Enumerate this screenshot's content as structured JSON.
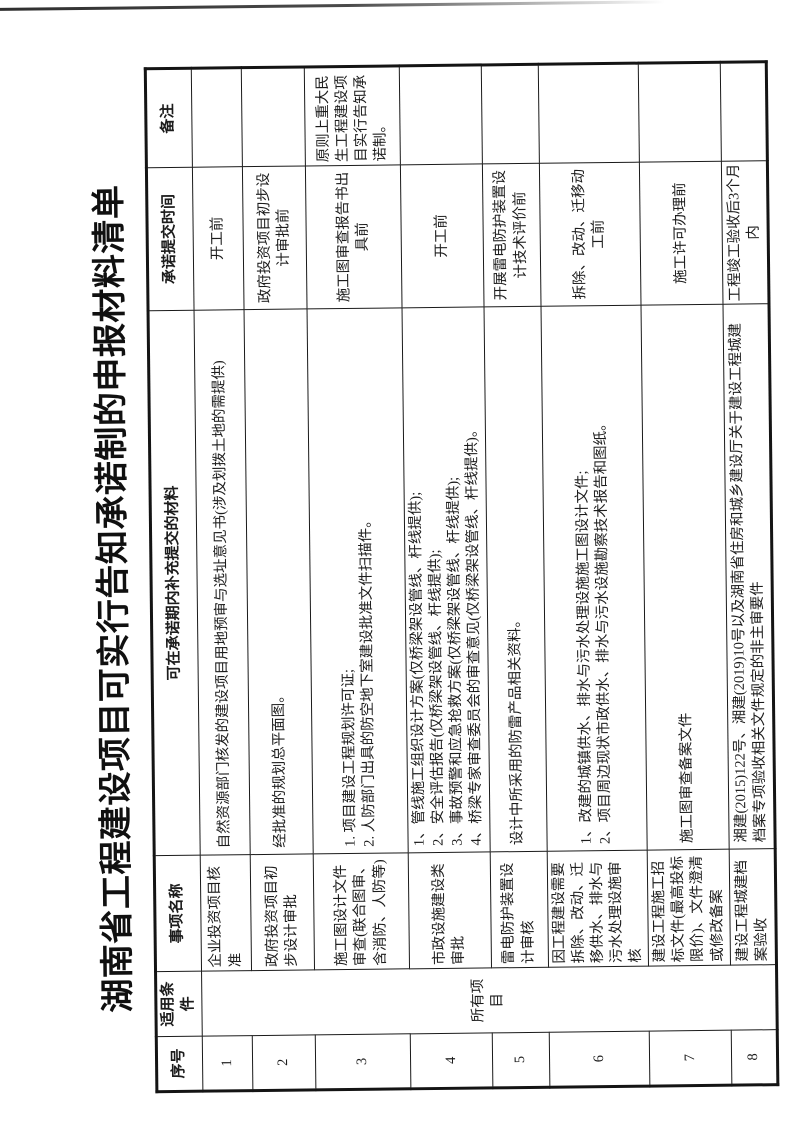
{
  "colors": {
    "ink": "#1c1c1c",
    "border": "#1a1a1a",
    "title_ink": "#101010",
    "paper": "#ffffff"
  },
  "page": {
    "title": "湖南省工程建设项目可实行告知承诺制的申报材料清单"
  },
  "table": {
    "headers": {
      "no": "序号",
      "condition": "适用条件",
      "item": "事项名称",
      "materials": "可在承诺期内补充提交的材料",
      "time": "承诺提交时间",
      "remark": "备注"
    },
    "condition_all": "所有项目",
    "rows": [
      {
        "no": "1",
        "name": "企业投资项目核准",
        "materials": [
          "自然资源部门核发的建设项目用地预审与选址意见书(涉及划拨土地的需提供)"
        ],
        "time": "开工前",
        "remark": ""
      },
      {
        "no": "2",
        "name": "政府投资项目初步设计审批",
        "materials": [
          "经批准的规划总平面图。"
        ],
        "time": "政府投资项目初步设计审批前",
        "remark": ""
      },
      {
        "no": "3",
        "name": "施工图设计文件审查(联合图审、含消防、人防等)",
        "materials": [
          "1. 项目建设工程规划许可证;",
          "2. 人防部门出具的防空地下室建设批准文件扫描件。"
        ],
        "time": "施工图审查报告书出具前",
        "remark": "原则上重大民生工程建设项目实行告知承诺制。"
      },
      {
        "no": "4",
        "name": "市政设施建设类审批",
        "materials": [
          "1、管线施工组织设计方案(仅桥梁架设管线、杆线提供);",
          "2、安全评估报告(仅桥梁架设管线、杆线提供);",
          "3、事故预警和应急抢救方案(仅桥梁架设管线、杆线提供);",
          "4、桥梁专家审查委员会的审查意见(仅桥梁架设管线、杆线提供)。"
        ],
        "time": "开工前",
        "remark": ""
      },
      {
        "no": "5",
        "name": "雷电防护装置设计审核",
        "materials": [
          "设计中所采用的防雷产品相关资料。"
        ],
        "time": "开展雷电防护装置设计技术评价前",
        "remark": ""
      },
      {
        "no": "6",
        "name": "因工程建设需要拆除、改动、迁移供水、排水与污水处理设施审核",
        "materials": [
          "1、改建的城镇供水、排水与污水处理设施施工图设计文件;",
          "2、项目周边现状市政供水、排水与污水设施勘察技术报告和图纸。"
        ],
        "time": "拆除、改动、迁移动工前",
        "remark": ""
      },
      {
        "no": "7",
        "name": "建设工程施工招标文件(最高投标限价)、文件澄清或修改备案",
        "materials": [
          "施工图审查备案文件"
        ],
        "time": "施工许可办理前",
        "remark": ""
      },
      {
        "no": "8",
        "name": "建设工程城建档案验收",
        "materials": [
          "湘建(2015)122号、湘建(2019)10号以及湖南省住房和城乡建设厅关于建设工程城建档案专项验收相关文件规定的非主审要件"
        ],
        "time": "工程竣工验收后3个月内",
        "remark": ""
      }
    ]
  },
  "artifacts": {
    "speck1": "’",
    "speck2": "·",
    "speck3": "∶",
    "speck4": "·"
  }
}
